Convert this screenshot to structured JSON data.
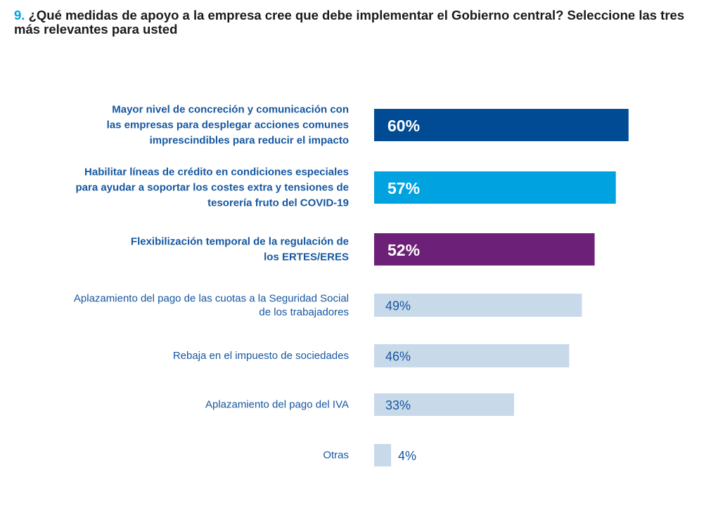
{
  "question": {
    "number": "9.",
    "text": "¿Qué medidas de apoyo a la empresa cree que debe implementar el Gobierno central? Seleccione las tres más relevantes para usted"
  },
  "colors": {
    "navy": "#004b93",
    "cyan": "#00a3e0",
    "purple": "#6d2077",
    "light": "#c8d9ea",
    "label_blue": "#1657a0",
    "white": "#ffffff"
  },
  "chart_data": {
    "type": "bar",
    "orientation": "horizontal",
    "title": "¿Qué medidas de apoyo a la empresa cree que debe implementar el Gobierno central? Seleccione las tres más relevantes para usted",
    "unit": "%",
    "xlim": [
      0,
      100
    ],
    "categories": [
      "Mayor nivel de concreción y comunicación con las empresas para desplegar acciones comunes imprescindibles para reducir el impacto",
      "Habilitar líneas de crédito en condiciones especiales para ayudar a soportar los costes extra y tensiones de tesorería fruto del COVID-19",
      "Flexibilización temporal de la regulación de los ERTES/ERES",
      "Aplazamiento del pago de las cuotas a la Seguridad Social de los trabajadores",
      "Rebaja en el impuesto de sociedades",
      "Aplazamiento del pago del IVA",
      "Otras"
    ],
    "values": [
      60,
      57,
      52,
      49,
      46,
      33,
      4
    ],
    "bars": [
      {
        "label_lines": [
          "Mayor nivel de concreción y comunicación con",
          "las empresas para desplegar acciones comunes",
          "imprescindibles para reducir el impacto"
        ],
        "value": 60,
        "value_label": "60%",
        "color": "navy",
        "emphasis": true
      },
      {
        "label_lines": [
          "Habilitar líneas de crédito en condiciones especiales",
          "para ayudar a soportar los costes extra y tensiones de",
          "tesorería fruto del COVID-19"
        ],
        "value": 57,
        "value_label": "57%",
        "color": "cyan",
        "emphasis": true
      },
      {
        "label_lines": [
          "Flexibilización temporal de la regulación de",
          "los ERTES/ERES"
        ],
        "value": 52,
        "value_label": "52%",
        "color": "purple",
        "emphasis": true
      },
      {
        "label_lines": [
          "Aplazamiento del pago de las cuotas a la Seguridad Social",
          "de los trabajadores"
        ],
        "value": 49,
        "value_label": "49%",
        "color": "light",
        "emphasis": false
      },
      {
        "label_lines": [
          "Rebaja en el impuesto de sociedades"
        ],
        "value": 46,
        "value_label": "46%",
        "color": "light",
        "emphasis": false
      },
      {
        "label_lines": [
          "Aplazamiento del pago del IVA"
        ],
        "value": 33,
        "value_label": "33%",
        "color": "light",
        "emphasis": false
      },
      {
        "label_lines": [
          "Otras"
        ],
        "value": 4,
        "value_label": "4%",
        "color": "light",
        "emphasis": false
      }
    ]
  }
}
